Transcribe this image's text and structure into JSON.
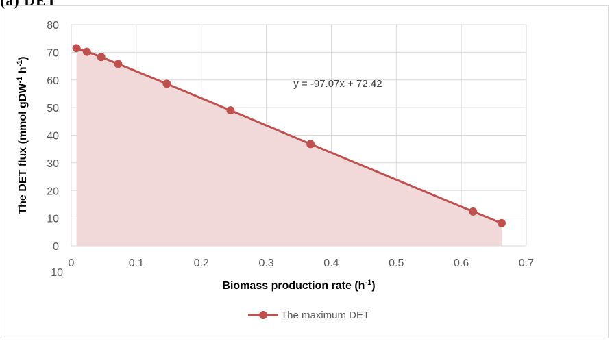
{
  "panel_label": "(a) DET",
  "chart_data": {
    "type": "area",
    "title": "",
    "xlabel": "Biomass production rate (h-1)",
    "ylabel": "The DET flux (mmol gDW-1 h-1)",
    "xlim": [
      0,
      0.7
    ],
    "ylim": [
      0,
      80
    ],
    "x_ticks": [
      "0",
      "0.1",
      "0.2",
      "0.3",
      "0.4",
      "0.5",
      "0.6",
      "0.7"
    ],
    "y_ticks": [
      "0",
      "10",
      "20",
      "30",
      "40",
      "50",
      "60",
      "70",
      "80"
    ],
    "x_axis_extra_label": "10",
    "grid": true,
    "legend_position": "bottom",
    "series": [
      {
        "name": "The maximum DET",
        "color": "#c0504d",
        "fill_color": "#f2d9d9",
        "x": [
          0.008,
          0.024,
          0.046,
          0.072,
          0.147,
          0.245,
          0.368,
          0.618,
          0.662
        ],
        "y": [
          71.5,
          70.2,
          68.3,
          65.8,
          58.6,
          49.0,
          36.8,
          12.4,
          8.2
        ]
      }
    ],
    "annotations": [
      {
        "text": "y = -97.07x + 72.42",
        "x": 0.41,
        "y": 57.5
      }
    ]
  }
}
